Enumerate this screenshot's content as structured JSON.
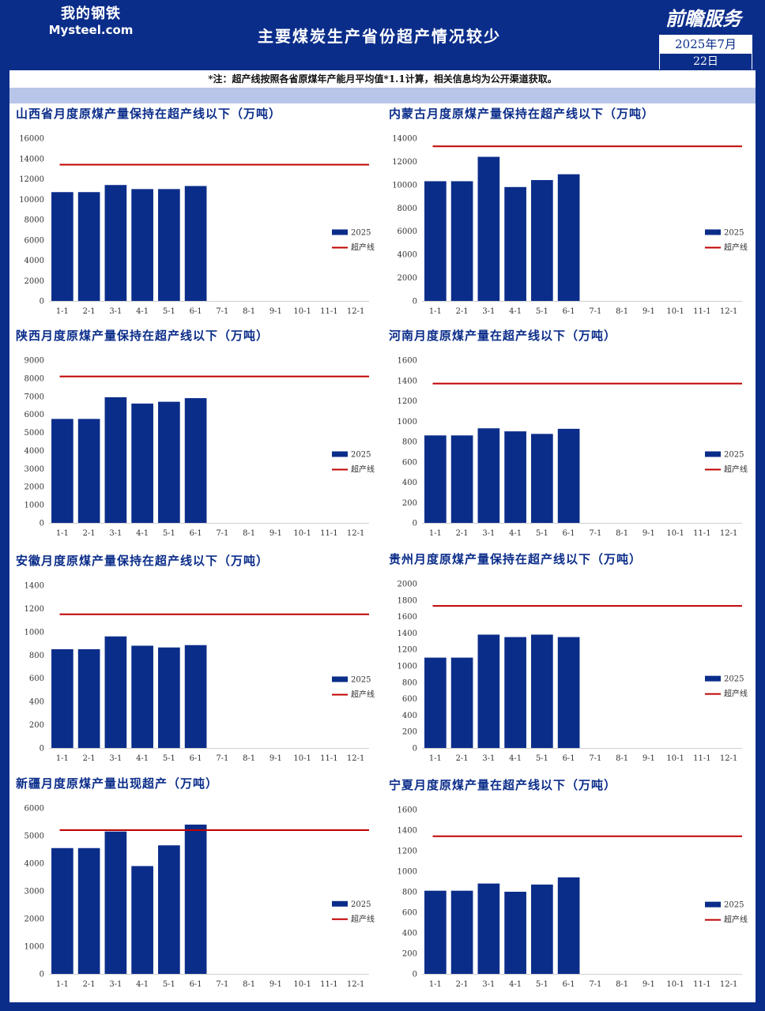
{
  "header": {
    "logo_cn": "我的钢铁",
    "logo_en": "Mysteel.com",
    "title": "主要煤炭生产省份超产情况较少",
    "brand": "前瞻服务",
    "date_month": "2025年7月",
    "date_day": "22日"
  },
  "note": "*注：超产线按照各省原煤年产能月平均值*1.1计算，相关信息均为公开渠道获取。",
  "colors": {
    "bar": "#0b2d8a",
    "line": "#c00000",
    "frame": "#0b2d8a",
    "band": "#b8c5e8"
  },
  "chart_data": [
    {
      "type": "bar",
      "title": "山西省月度原煤产量保持在超产线以下（万吨）",
      "categories": [
        "1-1",
        "2-1",
        "3-1",
        "4-1",
        "5-1",
        "6-1",
        "7-1",
        "8-1",
        "9-1",
        "10-1",
        "11-1",
        "12-1"
      ],
      "series": [
        {
          "name": "2025",
          "values": [
            10700,
            10700,
            11400,
            11000,
            11000,
            11300,
            null,
            null,
            null,
            null,
            null,
            null
          ]
        }
      ],
      "threshold": {
        "name": "超产线",
        "value": 13400
      },
      "ylim": [
        0,
        16000
      ],
      "yticks": [
        0,
        2000,
        4000,
        6000,
        8000,
        10000,
        12000,
        14000,
        16000
      ],
      "legend": "right"
    },
    {
      "type": "bar",
      "title": "内蒙古月度原煤产量保持在超产线以下（万吨）",
      "categories": [
        "1-1",
        "2-1",
        "3-1",
        "4-1",
        "5-1",
        "6-1",
        "7-1",
        "8-1",
        "9-1",
        "10-1",
        "11-1",
        "12-1"
      ],
      "series": [
        {
          "name": "2025",
          "values": [
            10300,
            10300,
            12400,
            9800,
            10400,
            10900,
            null,
            null,
            null,
            null,
            null,
            null
          ]
        }
      ],
      "threshold": {
        "name": "超产线",
        "value": 13300
      },
      "ylim": [
        0,
        14000
      ],
      "yticks": [
        0,
        2000,
        4000,
        6000,
        8000,
        10000,
        12000,
        14000
      ],
      "legend": "right"
    },
    {
      "type": "bar",
      "title": "陕西月度原煤产量保持在超产线以下（万吨）",
      "categories": [
        "1-1",
        "2-1",
        "3-1",
        "4-1",
        "5-1",
        "6-1",
        "7-1",
        "8-1",
        "9-1",
        "10-1",
        "11-1",
        "12-1"
      ],
      "series": [
        {
          "name": "2025",
          "values": [
            5750,
            5750,
            6950,
            6600,
            6700,
            6900,
            null,
            null,
            null,
            null,
            null,
            null
          ]
        }
      ],
      "threshold": {
        "name": "超产线",
        "value": 8100
      },
      "ylim": [
        0,
        9000
      ],
      "yticks": [
        0,
        1000,
        2000,
        3000,
        4000,
        5000,
        6000,
        7000,
        8000,
        9000
      ],
      "legend": "right"
    },
    {
      "type": "bar",
      "title": "河南月度原煤产量在超产线以下（万吨）",
      "categories": [
        "1-1",
        "2-1",
        "3-1",
        "4-1",
        "5-1",
        "6-1",
        "7-1",
        "8-1",
        "9-1",
        "10-1",
        "11-1",
        "12-1"
      ],
      "series": [
        {
          "name": "2025",
          "values": [
            860,
            860,
            930,
            900,
            875,
            925,
            null,
            null,
            null,
            null,
            null,
            null
          ]
        }
      ],
      "threshold": {
        "name": "超产线",
        "value": 1370
      },
      "ylim": [
        0,
        1600
      ],
      "yticks": [
        0,
        200,
        400,
        600,
        800,
        1000,
        1200,
        1400,
        1600
      ],
      "legend": "right"
    },
    {
      "type": "bar",
      "title": "安徽月度原煤产量保持在超产线以下（万吨）",
      "categories": [
        "1-1",
        "2-1",
        "3-1",
        "4-1",
        "5-1",
        "6-1",
        "7-1",
        "8-1",
        "9-1",
        "10-1",
        "11-1",
        "12-1"
      ],
      "series": [
        {
          "name": "2025",
          "values": [
            850,
            850,
            960,
            880,
            865,
            885,
            null,
            null,
            null,
            null,
            null,
            null
          ]
        }
      ],
      "threshold": {
        "name": "超产线",
        "value": 1150
      },
      "ylim": [
        0,
        1400
      ],
      "yticks": [
        0,
        200,
        400,
        600,
        800,
        1000,
        1200,
        1400
      ],
      "legend": "right"
    },
    {
      "type": "bar",
      "title": "贵州月度原煤产量保持在超产线以下（万吨）",
      "categories": [
        "1-1",
        "2-1",
        "3-1",
        "4-1",
        "5-1",
        "6-1",
        "7-1",
        "8-1",
        "9-1",
        "10-1",
        "11-1",
        "12-1"
      ],
      "series": [
        {
          "name": "2025",
          "values": [
            1100,
            1100,
            1380,
            1350,
            1380,
            1350,
            null,
            null,
            null,
            null,
            null,
            null
          ]
        }
      ],
      "threshold": {
        "name": "超产线",
        "value": 1730
      },
      "ylim": [
        0,
        2000
      ],
      "yticks": [
        0,
        200,
        400,
        600,
        800,
        1000,
        1200,
        1400,
        1600,
        1800,
        2000
      ],
      "legend": "right"
    },
    {
      "type": "bar",
      "title": "新疆月度原煤产量出现超产（万吨）",
      "categories": [
        "1-1",
        "2-1",
        "3-1",
        "4-1",
        "5-1",
        "6-1",
        "7-1",
        "8-1",
        "9-1",
        "10-1",
        "11-1",
        "12-1"
      ],
      "series": [
        {
          "name": "2025",
          "values": [
            4550,
            4550,
            5150,
            3900,
            4650,
            5400,
            null,
            null,
            null,
            null,
            null,
            null
          ]
        }
      ],
      "threshold": {
        "name": "超产线",
        "value": 5200
      },
      "ylim": [
        0,
        6000
      ],
      "yticks": [
        0,
        1000,
        2000,
        3000,
        4000,
        5000,
        6000
      ],
      "legend": "right"
    },
    {
      "type": "bar",
      "title": "宁夏月度原煤产量在超产线以下（万吨）",
      "categories": [
        "1-1",
        "2-1",
        "3-1",
        "4-1",
        "5-1",
        "6-1",
        "7-1",
        "8-1",
        "9-1",
        "10-1",
        "11-1",
        "12-1"
      ],
      "series": [
        {
          "name": "2025",
          "values": [
            810,
            810,
            880,
            800,
            870,
            940,
            null,
            null,
            null,
            null,
            null,
            null
          ]
        }
      ],
      "threshold": {
        "name": "超产线",
        "value": 1340
      },
      "ylim": [
        0,
        1600
      ],
      "yticks": [
        0,
        200,
        400,
        600,
        800,
        1000,
        1200,
        1400,
        1600
      ],
      "legend": "right"
    }
  ]
}
